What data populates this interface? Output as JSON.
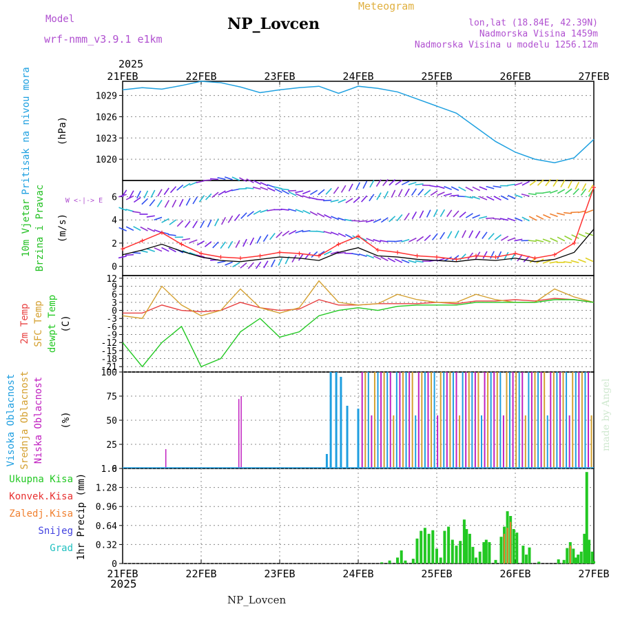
{
  "header": {
    "model_label": "Model",
    "model_name": "wrf-nmm_v3.9.1 e1km",
    "station": "NP_Lovcen",
    "chart_kind": "Meteogram",
    "lonlat": "lon,lat (18.84E, 42.39N)",
    "elevation": "Nadmorska Visina 1459m",
    "model_elevation": "Nadmorska Visina u modelu 1256.12m",
    "year": "2025",
    "footer_station": "NP_Lovcen",
    "credit": "made by Angel"
  },
  "colors": {
    "pressure": "#1ea0e0",
    "wind_label": "#22c022",
    "wind_speed": "#000000",
    "wind_gust": "#ff3030",
    "t2m": "#e84040",
    "tsfc": "#d4a030",
    "dewpt": "#22c822",
    "cloud_high": "#1e9ee0",
    "cloud_mid": "#d4a030",
    "cloud_low": "#c020c0",
    "total_precip": "#22c822",
    "conv_precip": "#e83030",
    "freezing_precip": "#f08030",
    "snow": "#4040e0",
    "hail": "#20c0c0",
    "header_purple": "#b050d0",
    "header_gold": "#e0b040"
  },
  "chart_data": [
    {
      "type": "line",
      "id": "pressure",
      "ylabel_lines": [
        "Pritisak na nivou mora",
        "(hPa)"
      ],
      "ylim": [
        1017,
        1031
      ],
      "yticks": [
        1020,
        1023,
        1026,
        1029
      ],
      "x_days": [
        0,
        0.25,
        0.5,
        0.75,
        1.0,
        1.25,
        1.5,
        1.75,
        2.0,
        2.25,
        2.5,
        2.75,
        3.0,
        3.25,
        3.5,
        3.75,
        4.0,
        4.25,
        4.5,
        4.75,
        5.0,
        5.25,
        5.5,
        5.75,
        6.0
      ],
      "values": [
        1029.8,
        1030.1,
        1029.9,
        1030.4,
        1031.0,
        1030.8,
        1030.2,
        1029.4,
        1029.8,
        1030.1,
        1030.3,
        1029.3,
        1030.3,
        1030.0,
        1029.5,
        1028.5,
        1027.5,
        1026.5,
        1024.5,
        1022.5,
        1021.0,
        1020.0,
        1019.5,
        1020.2,
        1022.8
      ]
    },
    {
      "type": "line",
      "id": "wind",
      "ylabel_lines": [
        "10m Vjetar",
        "Brzina i Pravac",
        "(m/s)"
      ],
      "compass": "W <-|-> E",
      "ylim": [
        -0.8,
        7.4
      ],
      "yticks": [
        0,
        2,
        4,
        6
      ],
      "x_days": [
        0,
        0.25,
        0.5,
        0.75,
        1.0,
        1.25,
        1.5,
        1.75,
        2.0,
        2.25,
        2.5,
        2.75,
        3.0,
        3.25,
        3.5,
        3.75,
        4.0,
        4.25,
        4.5,
        4.75,
        5.0,
        5.25,
        5.5,
        5.75,
        6.0
      ],
      "series": [
        {
          "values": [
            1.0,
            1.4,
            1.9,
            1.3,
            0.8,
            0.5,
            0.4,
            0.6,
            0.8,
            0.7,
            0.5,
            1.2,
            1.6,
            0.9,
            0.8,
            0.6,
            0.5,
            0.4,
            0.6,
            0.5,
            0.7,
            0.4,
            0.6,
            1.2,
            3.2
          ]
        },
        {
          "values": [
            1.5,
            2.2,
            2.9,
            1.9,
            1.1,
            0.8,
            0.7,
            0.9,
            1.2,
            1.1,
            0.9,
            1.9,
            2.6,
            1.4,
            1.2,
            0.9,
            0.8,
            0.6,
            0.9,
            0.8,
            1.1,
            0.7,
            1.0,
            2.0,
            6.8
          ]
        }
      ]
    },
    {
      "type": "line",
      "id": "temperature",
      "ylabel_lines": [
        "2m Temp",
        "SFC Temp",
        "dewpt Temp",
        "(C)"
      ],
      "ylim": [
        -23,
        13
      ],
      "yticks": [
        12,
        9,
        6,
        3,
        0,
        -3,
        -6,
        -9,
        -12,
        -15,
        -18,
        -21
      ],
      "x_days": [
        0,
        0.25,
        0.5,
        0.75,
        1.0,
        1.25,
        1.5,
        1.75,
        2.0,
        2.25,
        2.5,
        2.75,
        3.0,
        3.25,
        3.5,
        3.75,
        4.0,
        4.25,
        4.5,
        4.75,
        5.0,
        5.25,
        5.5,
        5.75,
        6.0
      ],
      "series": [
        {
          "name": "2m Temp",
          "values": [
            -1,
            -1,
            2,
            0,
            -0.5,
            0,
            3,
            1,
            0,
            0.5,
            4,
            2,
            2,
            2.5,
            2.5,
            2.5,
            3,
            2.5,
            3.5,
            3.5,
            4,
            3.5,
            4.5,
            4,
            3
          ]
        },
        {
          "name": "SFC Temp",
          "values": [
            -2,
            -3,
            9,
            2,
            -2,
            0,
            8,
            1,
            -1,
            1,
            11,
            3,
            2,
            2.5,
            6,
            4,
            3,
            3,
            6,
            4,
            3,
            3,
            8,
            5,
            3
          ]
        },
        {
          "name": "dewpt Temp",
          "values": [
            -12,
            -21,
            -12,
            -6,
            -21,
            -18,
            -8,
            -3,
            -10,
            -8,
            -2,
            0,
            1,
            0,
            1.5,
            2,
            2,
            2,
            3,
            3,
            3,
            3,
            4,
            4,
            3
          ]
        }
      ]
    },
    {
      "type": "bar",
      "id": "cloud",
      "ylabel_lines": [
        "Visoka Oblacnost",
        "Srednja Oblacnost",
        "Niska Oblacnost",
        "(%)"
      ],
      "ylim": [
        0,
        100
      ],
      "yticks": [
        0,
        25,
        50,
        75,
        100
      ],
      "spikes": [
        {
          "series": "low",
          "day": 0.55,
          "value": 20
        },
        {
          "series": "low",
          "day": 1.48,
          "value": 72
        },
        {
          "series": "low",
          "day": 1.51,
          "value": 75
        },
        {
          "series": "high",
          "day": 2.6,
          "value": 15
        },
        {
          "series": "high",
          "day": 2.65,
          "value": 100
        },
        {
          "series": "high",
          "day": 2.72,
          "value": 100
        },
        {
          "series": "high",
          "day": 2.78,
          "value": 95
        },
        {
          "series": "high",
          "day": 2.86,
          "value": 65
        },
        {
          "series": "high",
          "day": 3.0,
          "value": 62
        }
      ],
      "dense_band": {
        "from_day": 3.05,
        "to_day": 6.0,
        "value": 100
      }
    },
    {
      "type": "bar",
      "id": "precip",
      "ylabel_lines": [
        "1hr Precip (mm)"
      ],
      "legend": [
        "Ukupna Kisa",
        "Konvek.Kisa",
        "Zaledj.Kisa",
        "Snijeg",
        "Grad"
      ],
      "ylim": [
        0,
        1.6
      ],
      "yticks": [
        0,
        0.32,
        0.64,
        0.96,
        1.28,
        1.6
      ],
      "bars": [
        {
          "day": 3.3,
          "total": 0.02
        },
        {
          "day": 3.4,
          "total": 0.05
        },
        {
          "day": 3.5,
          "total": 0.1
        },
        {
          "day": 3.55,
          "total": 0.22
        },
        {
          "day": 3.6,
          "total": 0.05
        },
        {
          "day": 3.7,
          "total": 0.08
        },
        {
          "day": 3.75,
          "total": 0.42
        },
        {
          "day": 3.8,
          "total": 0.55
        },
        {
          "day": 3.85,
          "total": 0.6
        },
        {
          "day": 3.9,
          "total": 0.5
        },
        {
          "day": 3.95,
          "total": 0.56
        },
        {
          "day": 4.0,
          "total": 0.25
        },
        {
          "day": 4.05,
          "total": 0.1
        },
        {
          "day": 4.1,
          "total": 0.55
        },
        {
          "day": 4.15,
          "total": 0.62
        },
        {
          "day": 4.2,
          "total": 0.4
        },
        {
          "day": 4.25,
          "total": 0.3
        },
        {
          "day": 4.3,
          "total": 0.38
        },
        {
          "day": 4.35,
          "total": 0.74
        },
        {
          "day": 4.38,
          "total": 0.58
        },
        {
          "day": 4.42,
          "total": 0.5
        },
        {
          "day": 4.46,
          "total": 0.28
        },
        {
          "day": 4.5,
          "total": 0.1
        },
        {
          "day": 4.55,
          "total": 0.2
        },
        {
          "day": 4.6,
          "total": 0.36
        },
        {
          "day": 4.63,
          "total": 0.4
        },
        {
          "day": 4.67,
          "total": 0.36
        },
        {
          "day": 4.75,
          "total": 0.06
        },
        {
          "day": 4.82,
          "total": 0.45
        },
        {
          "day": 4.86,
          "total": 0.62,
          "conv": 0.5
        },
        {
          "day": 4.9,
          "total": 0.88,
          "conv": 0.6
        },
        {
          "day": 4.94,
          "total": 0.8,
          "conv": 0.7
        },
        {
          "day": 4.98,
          "total": 0.58
        },
        {
          "day": 5.02,
          "total": 0.52
        },
        {
          "day": 5.1,
          "total": 0.3
        },
        {
          "day": 5.14,
          "total": 0.15
        },
        {
          "day": 5.18,
          "total": 0.27
        },
        {
          "day": 5.3,
          "total": 0.03
        },
        {
          "day": 5.55,
          "total": 0.07
        },
        {
          "day": 5.62,
          "total": 0.06
        },
        {
          "day": 5.66,
          "total": 0.26
        },
        {
          "day": 5.7,
          "total": 0.36,
          "conv": 0.3
        },
        {
          "day": 5.74,
          "total": 0.25
        },
        {
          "day": 5.77,
          "total": 0.1
        },
        {
          "day": 5.8,
          "total": 0.15
        },
        {
          "day": 5.84,
          "total": 0.2
        },
        {
          "day": 5.88,
          "total": 0.5
        },
        {
          "day": 5.91,
          "total": 1.54
        },
        {
          "day": 5.94,
          "total": 0.4
        },
        {
          "day": 5.98,
          "total": 0.2
        },
        {
          "day": 6.0,
          "total": 0.04
        }
      ]
    }
  ],
  "axis": {
    "days": [
      "21FEB",
      "22FEB",
      "23FEB",
      "24FEB",
      "25FEB",
      "26FEB",
      "27FEB"
    ]
  }
}
